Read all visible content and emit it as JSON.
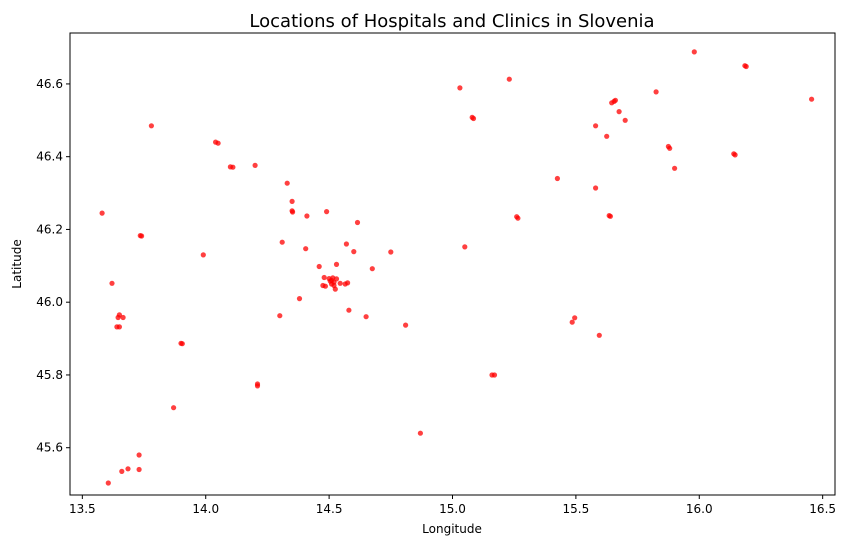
{
  "chart_data": {
    "type": "scatter",
    "title": "Locations of Hospitals and Clinics in Slovenia",
    "xlabel": "Longitude",
    "ylabel": "Latitude",
    "xlim": [
      13.45,
      16.55
    ],
    "ylim": [
      45.47,
      46.74
    ],
    "x_ticks": [
      "13.5",
      "14.0",
      "14.5",
      "15.0",
      "15.5",
      "16.0",
      "16.5"
    ],
    "y_ticks": [
      "45.6",
      "45.8",
      "46.0",
      "46.2",
      "46.4",
      "46.6"
    ],
    "grid": false,
    "legend": "none",
    "marker_color": "#ff0000",
    "marker_opacity": 0.75,
    "series": [
      {
        "points": [
          [
            13.58,
            46.245
          ],
          [
            13.62,
            46.052
          ],
          [
            13.65,
            45.965
          ],
          [
            13.645,
            45.958
          ],
          [
            13.665,
            45.958
          ],
          [
            13.64,
            45.932
          ],
          [
            13.65,
            45.932
          ],
          [
            13.74,
            46.182
          ],
          [
            13.735,
            46.183
          ],
          [
            13.78,
            46.485
          ],
          [
            13.605,
            45.503
          ],
          [
            13.66,
            45.535
          ],
          [
            13.685,
            45.542
          ],
          [
            13.73,
            45.58
          ],
          [
            13.73,
            45.54
          ],
          [
            13.87,
            45.71
          ],
          [
            13.905,
            45.886
          ],
          [
            13.9,
            45.887
          ],
          [
            13.99,
            46.13
          ],
          [
            14.04,
            46.44
          ],
          [
            14.05,
            46.437
          ],
          [
            14.1,
            46.372
          ],
          [
            14.11,
            46.371
          ],
          [
            14.2,
            46.376
          ],
          [
            14.21,
            45.775
          ],
          [
            14.21,
            45.77
          ],
          [
            14.3,
            45.963
          ],
          [
            14.31,
            46.165
          ],
          [
            14.33,
            46.327
          ],
          [
            14.35,
            46.277
          ],
          [
            14.35,
            46.251
          ],
          [
            14.352,
            46.248
          ],
          [
            14.38,
            46.01
          ],
          [
            14.405,
            46.147
          ],
          [
            14.41,
            46.237
          ],
          [
            14.46,
            46.098
          ],
          [
            14.48,
            46.068
          ],
          [
            14.475,
            46.046
          ],
          [
            14.485,
            46.044
          ],
          [
            14.49,
            46.249
          ],
          [
            14.5,
            46.065
          ],
          [
            14.505,
            46.058
          ],
          [
            14.51,
            46.06
          ],
          [
            14.51,
            46.05
          ],
          [
            14.515,
            46.067
          ],
          [
            14.52,
            46.055
          ],
          [
            14.52,
            46.046
          ],
          [
            14.525,
            46.036
          ],
          [
            14.53,
            46.064
          ],
          [
            14.53,
            46.104
          ],
          [
            14.545,
            46.052
          ],
          [
            14.565,
            46.05
          ],
          [
            14.57,
            46.16
          ],
          [
            14.575,
            46.053
          ],
          [
            14.58,
            45.978
          ],
          [
            14.6,
            46.139
          ],
          [
            14.615,
            46.219
          ],
          [
            14.65,
            45.96
          ],
          [
            14.675,
            46.092
          ],
          [
            14.75,
            46.138
          ],
          [
            14.81,
            45.937
          ],
          [
            14.87,
            45.64
          ],
          [
            15.03,
            46.589
          ],
          [
            15.05,
            46.152
          ],
          [
            15.08,
            46.508
          ],
          [
            15.085,
            46.505
          ],
          [
            15.16,
            45.8
          ],
          [
            15.17,
            45.8
          ],
          [
            15.23,
            46.613
          ],
          [
            15.26,
            46.235
          ],
          [
            15.265,
            46.231
          ],
          [
            15.425,
            46.34
          ],
          [
            15.485,
            45.945
          ],
          [
            15.495,
            45.957
          ],
          [
            15.58,
            46.485
          ],
          [
            15.58,
            46.314
          ],
          [
            15.595,
            45.909
          ],
          [
            15.625,
            46.456
          ],
          [
            15.635,
            46.238
          ],
          [
            15.64,
            46.236
          ],
          [
            15.645,
            46.548
          ],
          [
            15.655,
            46.552
          ],
          [
            15.66,
            46.555
          ],
          [
            15.675,
            46.524
          ],
          [
            15.7,
            46.5
          ],
          [
            15.825,
            46.578
          ],
          [
            15.875,
            46.428
          ],
          [
            15.88,
            46.423
          ],
          [
            15.9,
            46.368
          ],
          [
            15.98,
            46.688
          ],
          [
            16.14,
            46.408
          ],
          [
            16.145,
            46.405
          ],
          [
            16.185,
            46.65
          ],
          [
            16.19,
            46.648
          ],
          [
            16.455,
            46.558
          ]
        ]
      }
    ]
  }
}
